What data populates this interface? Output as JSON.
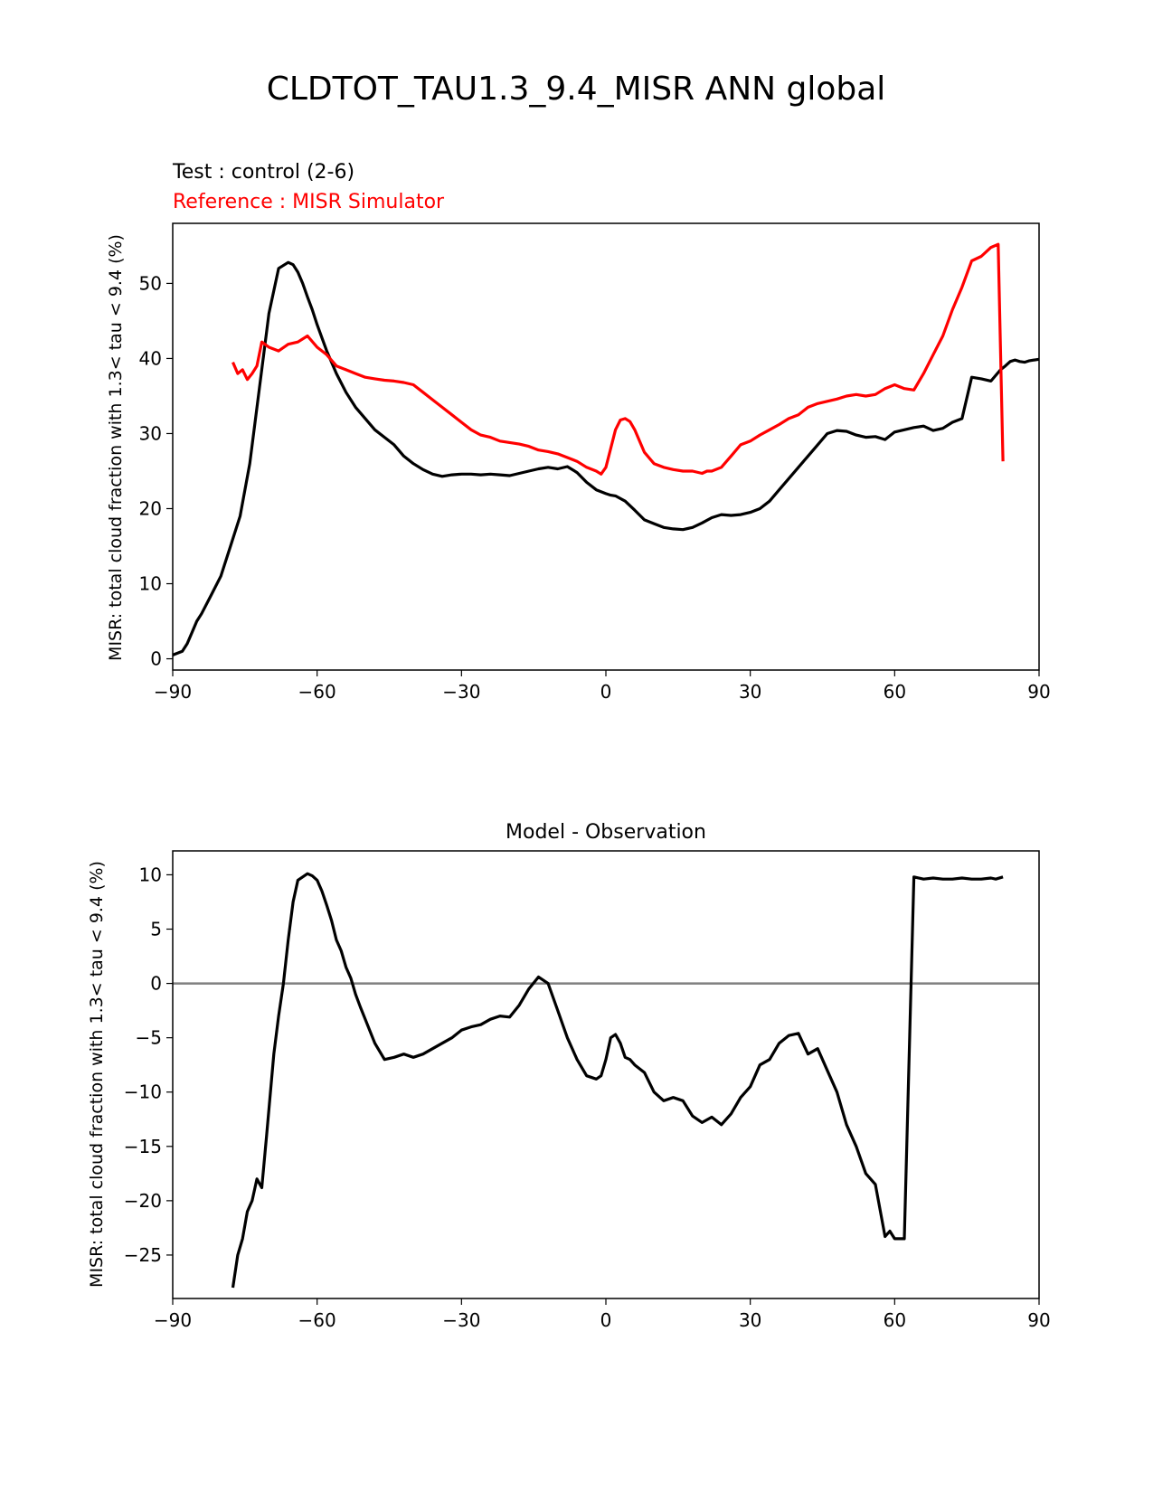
{
  "suptitle": "CLDTOT_TAU1.3_9.4_MISR ANN global",
  "chart_data": [
    {
      "type": "line",
      "title_left_test": "Test : control (2-6)",
      "title_left_reference": "Reference : MISR Simulator",
      "ylabel": "MISR: total cloud fraction with 1.3< tau < 9.4 (%)",
      "xlabel": "",
      "xlim": [
        -90,
        90
      ],
      "ylim": [
        -1.5,
        58
      ],
      "xticks": [
        -90,
        -60,
        -30,
        0,
        30,
        60,
        90
      ],
      "xtick_labels": [
        "−90",
        "−60",
        "−30",
        "0",
        "30",
        "60",
        "90"
      ],
      "yticks": [
        0,
        10,
        20,
        30,
        40,
        50
      ],
      "ytick_labels": [
        "0",
        "10",
        "20",
        "30",
        "40",
        "50"
      ],
      "series": [
        {
          "name": "Test : control (2-6)",
          "color": "#000000",
          "x": [
            -90,
            -88,
            -87,
            -86,
            -85,
            -84,
            -82,
            -80,
            -78,
            -76,
            -74,
            -72,
            -70,
            -68,
            -66,
            -65,
            -64,
            -63,
            -62,
            -61,
            -60,
            -58,
            -56,
            -54,
            -52,
            -50,
            -48,
            -46,
            -44,
            -42,
            -40,
            -38,
            -36,
            -34,
            -32,
            -30,
            -28,
            -26,
            -24,
            -22,
            -20,
            -18,
            -16,
            -14,
            -12,
            -10,
            -8,
            -6,
            -4,
            -2,
            0,
            1,
            2,
            4,
            6,
            8,
            10,
            12,
            14,
            16,
            18,
            20,
            22,
            24,
            26,
            28,
            30,
            32,
            34,
            36,
            38,
            40,
            42,
            44,
            46,
            48,
            50,
            52,
            54,
            56,
            58,
            60,
            62,
            64,
            66,
            68,
            70,
            72,
            74,
            76,
            78,
            80,
            82,
            83,
            84,
            85,
            86,
            87,
            88,
            90
          ],
          "y": [
            0.5,
            1,
            2,
            3.5,
            5,
            6,
            8.5,
            11,
            15,
            19,
            26,
            36,
            46,
            52,
            52.8,
            52.5,
            51.5,
            50,
            48.2,
            46.5,
            44.5,
            41,
            38,
            35.5,
            33.5,
            32,
            30.5,
            29.5,
            28.5,
            27,
            26,
            25.2,
            24.6,
            24.3,
            24.5,
            24.6,
            24.6,
            24.5,
            24.6,
            24.5,
            24.4,
            24.7,
            25,
            25.3,
            25.5,
            25.3,
            25.6,
            24.8,
            23.5,
            22.5,
            22.0,
            21.8,
            21.7,
            21.0,
            19.8,
            18.5,
            18.0,
            17.5,
            17.3,
            17.2,
            17.5,
            18.1,
            18.8,
            19.2,
            19.1,
            19.2,
            19.5,
            20.0,
            21.0,
            22.5,
            24.0,
            25.5,
            27.0,
            28.5,
            30.0,
            30.4,
            30.3,
            29.8,
            29.5,
            29.6,
            29.2,
            30.2,
            30.5,
            30.8,
            31.0,
            30.4,
            30.7,
            31.5,
            32.0,
            37.5,
            37.3,
            37.0,
            38.5,
            39.0,
            39.6,
            39.8,
            39.6,
            39.5,
            39.7,
            39.9
          ]
        },
        {
          "name": "Reference : MISR Simulator",
          "color": "#ff0000",
          "x": [
            -77.5,
            -76.5,
            -75.5,
            -74.5,
            -73.5,
            -72.5,
            -71.5,
            -70,
            -68,
            -66,
            -64,
            -62,
            -60,
            -58,
            -56,
            -54,
            -52,
            -50,
            -48,
            -46,
            -44,
            -42,
            -40,
            -38,
            -36,
            -34,
            -32,
            -30,
            -28,
            -26,
            -24,
            -22,
            -20,
            -18,
            -16,
            -14,
            -12,
            -10,
            -8,
            -6,
            -4,
            -2,
            -1,
            0,
            1,
            2,
            3,
            4,
            5,
            6,
            8,
            10,
            12,
            14,
            16,
            18,
            20,
            21,
            22,
            24,
            26,
            28,
            30,
            32,
            34,
            36,
            38,
            40,
            42,
            44,
            46,
            48,
            50,
            52,
            54,
            56,
            58,
            60,
            62,
            64,
            66,
            68,
            70,
            72,
            74,
            76,
            78,
            80,
            81.5,
            82.5
          ],
          "y": [
            39.5,
            38.0,
            38.5,
            37.2,
            38.0,
            39.0,
            42.2,
            41.5,
            41.0,
            41.9,
            42.2,
            43.0,
            41.5,
            40.5,
            39.0,
            38.5,
            38.0,
            37.5,
            37.3,
            37.1,
            37.0,
            36.8,
            36.5,
            35.5,
            34.5,
            33.5,
            32.5,
            31.5,
            30.5,
            29.8,
            29.5,
            29.0,
            28.8,
            28.6,
            28.3,
            27.8,
            27.6,
            27.3,
            26.8,
            26.3,
            25.5,
            25.0,
            24.6,
            25.5,
            28.0,
            30.5,
            31.8,
            32.0,
            31.6,
            30.5,
            27.5,
            26.0,
            25.5,
            25.2,
            25.0,
            25.0,
            24.7,
            25.0,
            25.0,
            25.5,
            27.0,
            28.5,
            29.0,
            29.8,
            30.5,
            31.2,
            32.0,
            32.5,
            33.5,
            34.0,
            34.3,
            34.6,
            35.0,
            35.2,
            35.0,
            35.2,
            36.0,
            36.5,
            36.0,
            35.8,
            38.0,
            40.5,
            43.0,
            46.5,
            49.5,
            53.0,
            53.6,
            54.8,
            55.2,
            26.3
          ]
        }
      ]
    },
    {
      "type": "line",
      "title": "Model - Observation",
      "ylabel": "MISR: total cloud fraction with 1.3< tau < 9.4 (%)",
      "xlabel": "",
      "xlim": [
        -90,
        90
      ],
      "ylim": [
        -29,
        12.2
      ],
      "xticks": [
        -90,
        -60,
        -30,
        0,
        30,
        60,
        90
      ],
      "xtick_labels": [
        "−90",
        "−60",
        "−30",
        "0",
        "30",
        "60",
        "90"
      ],
      "yticks": [
        -25,
        -20,
        -15,
        -10,
        -5,
        0,
        5,
        10
      ],
      "ytick_labels": [
        "−25",
        "−20",
        "−15",
        "−10",
        "−5",
        "0",
        "5",
        "10"
      ],
      "zero_line_color": "#808080",
      "series": [
        {
          "color": "#000000",
          "x": [
            -77.5,
            -76.5,
            -75.5,
            -74.5,
            -73.5,
            -72.5,
            -71.5,
            -70.5,
            -69,
            -68,
            -67,
            -66,
            -65,
            -64,
            -63,
            -62,
            -61,
            -60,
            -59,
            -58,
            -57,
            -56,
            -55,
            -54,
            -53,
            -52,
            -51,
            -50,
            -48,
            -46,
            -44,
            -42,
            -40,
            -38,
            -36,
            -34,
            -32,
            -30,
            -28,
            -26,
            -24,
            -22,
            -20,
            -18,
            -16,
            -14,
            -12,
            -10,
            -8,
            -6,
            -4,
            -2,
            -1,
            0,
            1,
            2,
            3,
            4,
            5,
            6,
            8,
            10,
            12,
            14,
            16,
            18,
            20,
            22,
            24,
            26,
            28,
            30,
            32,
            34,
            36,
            38,
            40,
            42,
            44,
            46,
            48,
            50,
            52,
            54,
            56,
            58,
            59,
            60,
            62,
            64,
            66,
            68,
            70,
            72,
            74,
            76,
            78,
            80,
            81,
            82.5
          ],
          "y": [
            -28.0,
            -25.0,
            -23.5,
            -21.0,
            -20.0,
            -18.0,
            -18.8,
            -14.0,
            -6.5,
            -3.0,
            0.0,
            4.0,
            7.5,
            9.5,
            9.8,
            10.1,
            9.9,
            9.5,
            8.5,
            7.2,
            5.8,
            4.0,
            3.0,
            1.5,
            0.5,
            -1.0,
            -2.2,
            -3.3,
            -5.5,
            -7.0,
            -6.8,
            -6.5,
            -6.8,
            -6.5,
            -6.0,
            -5.5,
            -5.0,
            -4.3,
            -4.0,
            -3.8,
            -3.3,
            -3.0,
            -3.1,
            -2.0,
            -0.5,
            0.6,
            0.0,
            -2.5,
            -5.0,
            -7.0,
            -8.5,
            -8.8,
            -8.5,
            -7.0,
            -5.0,
            -4.7,
            -5.5,
            -6.8,
            -7.0,
            -7.5,
            -8.2,
            -10.0,
            -10.8,
            -10.5,
            -10.8,
            -12.2,
            -12.8,
            -12.3,
            -13.0,
            -12.0,
            -10.5,
            -9.5,
            -7.5,
            -7.0,
            -5.5,
            -4.8,
            -4.6,
            -6.5,
            -6.0,
            -8.0,
            -10.0,
            -13.0,
            -15.0,
            -17.5,
            -18.5,
            -23.3,
            -22.8,
            -23.5,
            -23.5,
            9.8,
            9.6,
            9.7,
            9.6,
            9.6,
            9.7,
            9.6,
            9.6,
            9.7,
            9.6,
            9.8
          ]
        }
      ]
    }
  ]
}
